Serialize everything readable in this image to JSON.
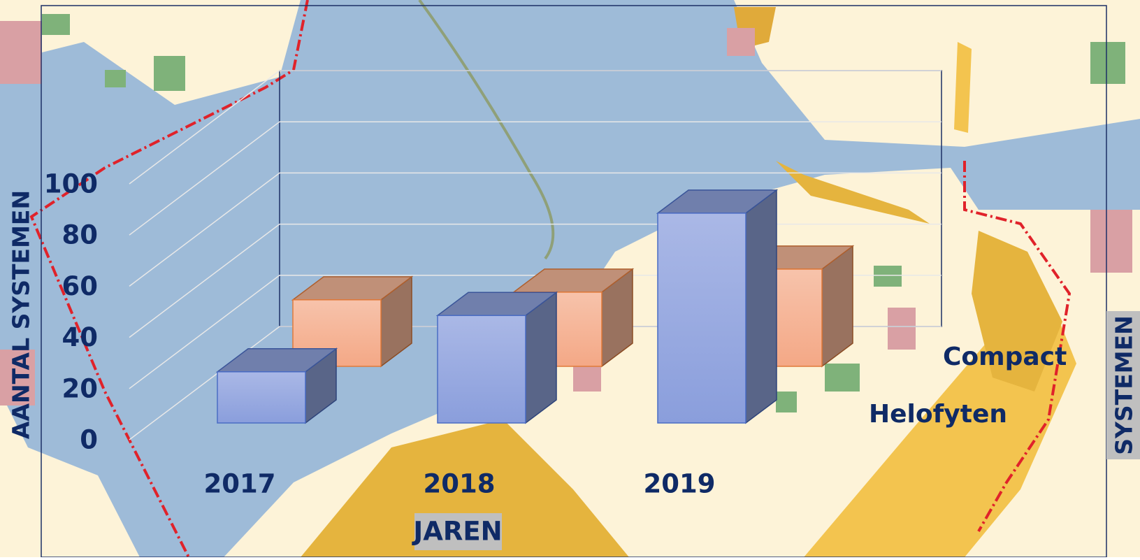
{
  "chart_data": {
    "type": "bar3d",
    "xlabel": "JAREN",
    "ylabel": "AANTAL SYSTEMEN",
    "annotations": [
      "SYSTEMEN"
    ],
    "categories": [
      "2017",
      "2018",
      "2019"
    ],
    "series": [
      {
        "name": "Helofyten",
        "color": "#8fa3dc",
        "values": [
          20,
          42,
          82
        ]
      },
      {
        "name": "Compact",
        "color": "#f6b89a",
        "values": [
          26,
          29,
          38
        ]
      }
    ],
    "ylim": [
      0,
      100
    ],
    "yticks": [
      0,
      20,
      40,
      60,
      80,
      100
    ],
    "grid": true
  }
}
